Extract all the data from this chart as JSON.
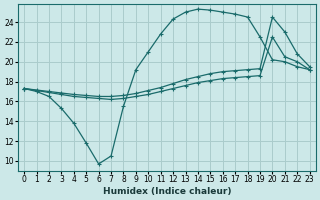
{
  "xlabel": "Humidex (Indice chaleur)",
  "bg_color": "#cce8e8",
  "grid_color": "#aacccc",
  "line_color": "#1a6b6b",
  "xlim": [
    -0.5,
    23.5
  ],
  "ylim": [
    9,
    25.8
  ],
  "xticks": [
    0,
    1,
    2,
    3,
    4,
    5,
    6,
    7,
    8,
    9,
    10,
    11,
    12,
    13,
    14,
    15,
    16,
    17,
    18,
    19,
    20,
    21,
    22,
    23
  ],
  "yticks": [
    10,
    12,
    14,
    16,
    18,
    20,
    22,
    24
  ],
  "curve1_x": [
    0,
    1,
    2,
    3,
    4,
    5,
    6,
    7,
    8,
    9,
    10,
    11,
    12,
    13,
    14,
    15,
    16,
    17,
    18,
    19,
    20,
    21,
    22,
    23
  ],
  "curve1_y": [
    17.3,
    17.0,
    16.5,
    15.3,
    13.8,
    11.8,
    9.7,
    10.5,
    15.5,
    19.2,
    21.0,
    22.8,
    24.3,
    25.0,
    25.3,
    25.2,
    25.0,
    24.8,
    24.5,
    22.5,
    20.2,
    20.0,
    19.5,
    19.2
  ],
  "curve2_x": [
    0,
    1,
    2,
    3,
    4,
    5,
    6,
    7,
    8,
    9,
    10,
    11,
    12,
    13,
    14,
    15,
    16,
    17,
    18,
    19,
    20,
    21,
    22,
    23
  ],
  "curve2_y": [
    17.3,
    17.1,
    16.9,
    16.7,
    16.5,
    16.4,
    16.3,
    16.2,
    16.3,
    16.5,
    16.7,
    17.0,
    17.3,
    17.6,
    17.9,
    18.1,
    18.3,
    18.4,
    18.5,
    18.6,
    22.5,
    20.5,
    20.0,
    19.2
  ],
  "curve3_x": [
    0,
    1,
    2,
    3,
    4,
    5,
    6,
    7,
    8,
    9,
    10,
    11,
    12,
    13,
    14,
    15,
    16,
    17,
    18,
    19,
    20,
    21,
    22,
    23
  ],
  "curve3_y": [
    17.3,
    17.15,
    17.0,
    16.85,
    16.7,
    16.6,
    16.5,
    16.5,
    16.6,
    16.8,
    17.1,
    17.4,
    17.8,
    18.2,
    18.5,
    18.8,
    19.0,
    19.1,
    19.2,
    19.3,
    24.5,
    23.0,
    20.8,
    19.5
  ]
}
